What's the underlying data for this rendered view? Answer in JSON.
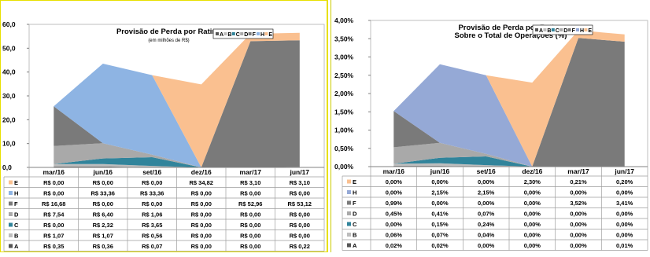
{
  "chart_data": [
    {
      "type": "area",
      "title": "Provisão de Perda por Rating",
      "subtitle": "(em milhões de R$)",
      "categories": [
        "mar/16",
        "jun/16",
        "set/16",
        "dez/16",
        "mar/17",
        "jun/17"
      ],
      "yticks": [
        "0,0",
        "10,0",
        "20,0",
        "30,0",
        "40,0",
        "50,0",
        "60,0"
      ],
      "ylim": [
        0,
        60
      ],
      "legend": [
        "A",
        "B",
        "C",
        "D",
        "F",
        "H",
        "E"
      ],
      "legend_position": "top-right",
      "stack_order": [
        "A",
        "B",
        "C",
        "D",
        "F",
        "H",
        "E"
      ],
      "table_order": [
        "E",
        "H",
        "F",
        "D",
        "C",
        "B",
        "A"
      ],
      "series": [
        {
          "name": "A",
          "color": "#555555",
          "values": [
            0.35,
            0.36,
            0.07,
            0.0,
            0.0,
            0.22
          ],
          "labels": [
            "R$ 0,35",
            "R$ 0,36",
            "R$ 0,07",
            "R$ 0,00",
            "R$ 0,00",
            "R$ 0,22"
          ]
        },
        {
          "name": "B",
          "color": "#bdbdbd",
          "values": [
            1.07,
            1.07,
            0.56,
            0.0,
            0.0,
            0.0
          ],
          "labels": [
            "R$ 1,07",
            "R$ 1,07",
            "R$ 0,56",
            "R$ 0,00",
            "R$ 0,00",
            "R$ 0,00"
          ]
        },
        {
          "name": "C",
          "color": "#31849b",
          "values": [
            0.0,
            2.32,
            3.65,
            0.0,
            0.0,
            0.0
          ],
          "labels": [
            "R$ 0,00",
            "R$ 2,32",
            "R$ 3,65",
            "R$ 0,00",
            "R$ 0,00",
            "R$ 0,00"
          ]
        },
        {
          "name": "D",
          "color": "#a9a9a9",
          "values": [
            7.54,
            6.4,
            1.06,
            0.0,
            0.0,
            0.0
          ],
          "labels": [
            "R$ 7,54",
            "R$ 6,40",
            "R$ 1,06",
            "R$ 0,00",
            "R$ 0,00",
            "R$ 0,00"
          ]
        },
        {
          "name": "F",
          "color": "#7a7a7a",
          "values": [
            16.68,
            0.0,
            0.0,
            0.0,
            52.96,
            53.12
          ],
          "labels": [
            "R$ 16,68",
            "R$ 0,00",
            "R$ 0,00",
            "R$ 0,00",
            "R$ 52,96",
            "R$ 53,12"
          ]
        },
        {
          "name": "H",
          "color": "#8eb4e3",
          "values": [
            0.0,
            33.36,
            33.36,
            0.0,
            0.0,
            0.0
          ],
          "labels": [
            "R$ 0,00",
            "R$ 33,36",
            "R$ 33,36",
            "R$ 0,00",
            "R$ 0,00",
            "R$ 0,00"
          ]
        },
        {
          "name": "E",
          "color": "#fac090",
          "values": [
            0.0,
            0.0,
            0.0,
            34.82,
            3.1,
            3.1
          ],
          "labels": [
            "R$ 0,00",
            "R$ 0,00",
            "R$ 0,00",
            "R$ 34,82",
            "R$ 3,10",
            "R$ 3,10"
          ]
        }
      ]
    },
    {
      "type": "area",
      "title": "Provisão de Perda por Rating",
      "subtitle": "Sobre o Total de Operações (%)",
      "categories": [
        "mar/16",
        "jun/16",
        "set/16",
        "dez/16",
        "mar/17",
        "jun/17"
      ],
      "yticks": [
        "0,00%",
        "0,50%",
        "1,00%",
        "1,50%",
        "2,00%",
        "2,50%",
        "3,00%",
        "3,50%",
        "4,00%"
      ],
      "ylim": [
        0,
        4
      ],
      "legend": [
        "A",
        "B",
        "C",
        "D",
        "F",
        "H",
        "E"
      ],
      "legend_position": "top-right",
      "stack_order": [
        "A",
        "B",
        "C",
        "D",
        "F",
        "H",
        "E"
      ],
      "table_order": [
        "E",
        "H",
        "F",
        "D",
        "C",
        "B",
        "A"
      ],
      "series": [
        {
          "name": "A",
          "color": "#555555",
          "values": [
            0.02,
            0.02,
            0.0,
            0.0,
            0.0,
            0.01
          ],
          "labels": [
            "0,02%",
            "0,02%",
            "0,00%",
            "0,00%",
            "0,00%",
            "0,01%"
          ]
        },
        {
          "name": "B",
          "color": "#bdbdbd",
          "values": [
            0.06,
            0.07,
            0.04,
            0.0,
            0.0,
            0.0
          ],
          "labels": [
            "0,06%",
            "0,07%",
            "0,04%",
            "0,00%",
            "0,00%",
            "0,00%"
          ]
        },
        {
          "name": "C",
          "color": "#31849b",
          "values": [
            0.0,
            0.15,
            0.24,
            0.0,
            0.0,
            0.0
          ],
          "labels": [
            "0,00%",
            "0,15%",
            "0,24%",
            "0,00%",
            "0,00%",
            "0,00%"
          ]
        },
        {
          "name": "D",
          "color": "#a9a9a9",
          "values": [
            0.45,
            0.41,
            0.07,
            0.0,
            0.0,
            0.0
          ],
          "labels": [
            "0,45%",
            "0,41%",
            "0,07%",
            "0,00%",
            "0,00%",
            "0,00%"
          ]
        },
        {
          "name": "F",
          "color": "#7a7a7a",
          "values": [
            0.99,
            0.0,
            0.0,
            0.0,
            3.52,
            3.41
          ],
          "labels": [
            "0,99%",
            "0,00%",
            "0,00%",
            "0,00%",
            "3,52%",
            "3,41%"
          ]
        },
        {
          "name": "H",
          "color": "#95a9d6",
          "values": [
            0.0,
            2.15,
            2.15,
            0.0,
            0.0,
            0.0
          ],
          "labels": [
            "0,00%",
            "2,15%",
            "2,15%",
            "0,00%",
            "0,00%",
            "0,00%"
          ]
        },
        {
          "name": "E",
          "color": "#fac090",
          "values": [
            0.0,
            0.0,
            0.0,
            2.3,
            0.21,
            0.2
          ],
          "labels": [
            "0,00%",
            "0,00%",
            "0,00%",
            "2,30%",
            "0,21%",
            "0,20%"
          ]
        }
      ]
    }
  ]
}
